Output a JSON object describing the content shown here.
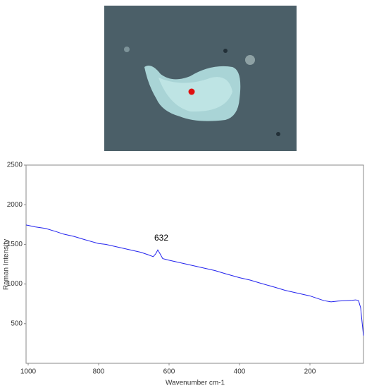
{
  "chart_data": {
    "type": "line",
    "x_label": "Wavenumber cm-1",
    "y_label": "Raman Intensity",
    "annotation": "632",
    "x": [
      1006,
      980,
      950,
      920,
      900,
      870,
      840,
      800,
      780,
      760,
      740,
      720,
      700,
      680,
      660,
      645,
      638,
      632,
      626,
      618,
      600,
      580,
      560,
      540,
      520,
      500,
      470,
      440,
      400,
      370,
      340,
      300,
      270,
      240,
      200,
      180,
      160,
      140,
      120,
      100,
      80,
      70,
      62,
      56,
      52,
      48
    ],
    "values": [
      1745,
      1720,
      1700,
      1660,
      1630,
      1600,
      1560,
      1510,
      1500,
      1480,
      1460,
      1440,
      1420,
      1400,
      1370,
      1345,
      1380,
      1430,
      1385,
      1320,
      1300,
      1280,
      1260,
      1240,
      1220,
      1200,
      1170,
      1130,
      1080,
      1050,
      1010,
      960,
      920,
      890,
      850,
      820,
      790,
      775,
      785,
      790,
      795,
      800,
      790,
      700,
      520,
      350
    ],
    "color": "#2222ee",
    "xlim": [
      1006,
      48
    ],
    "xticks": [
      1000,
      800,
      600,
      400,
      200
    ],
    "ylim": [
      0,
      2500
    ],
    "yticks": [
      500,
      1000,
      1500,
      2000,
      2500
    ]
  }
}
